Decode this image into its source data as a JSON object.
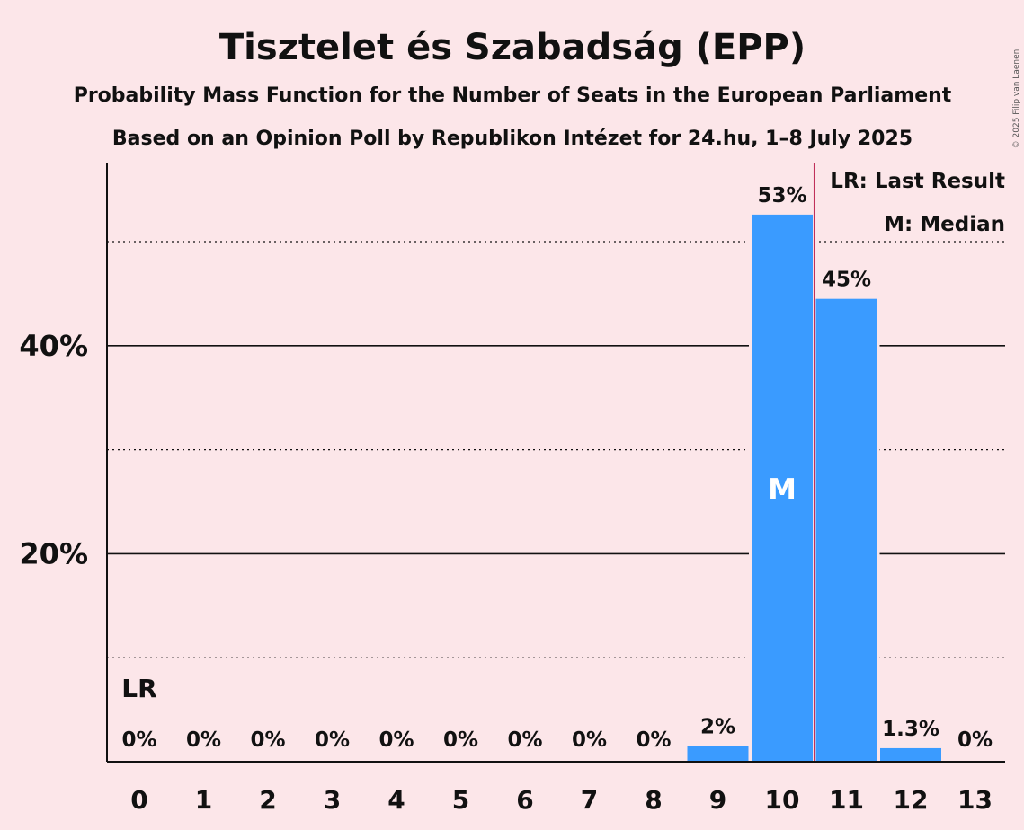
{
  "chart_data": {
    "type": "bar",
    "title": "Tisztelet és Szabadság (EPP)",
    "subtitle": "Probability Mass Function for the Number of Seats in the European Parliament",
    "subtitle2": "Based on an Opinion Poll by Republikon Intézet for 24.hu, 1–8 July 2025",
    "categories": [
      "0",
      "1",
      "2",
      "3",
      "4",
      "5",
      "6",
      "7",
      "8",
      "9",
      "10",
      "11",
      "12",
      "13"
    ],
    "values": [
      0,
      0,
      0,
      0,
      0,
      0,
      0,
      0,
      0,
      1.5,
      52.6,
      44.5,
      1.3,
      0
    ],
    "data_labels": [
      "0%",
      "0%",
      "0%",
      "0%",
      "0%",
      "0%",
      "0%",
      "0%",
      "0%",
      "2%",
      "53%",
      "45%",
      "1.3%",
      "0%"
    ],
    "ylim": [
      0,
      57.5
    ],
    "yticks": [
      20,
      40
    ],
    "ytick_labels": [
      "20%",
      "40%"
    ],
    "minor_gridlines": [
      10,
      30,
      50
    ],
    "last_result_seats": 0,
    "last_result_label": "LR",
    "median_seats": 10,
    "median_label": "M",
    "majority_line_after_seat": 10,
    "legend": [
      "LR: Last Result",
      "M: Median"
    ],
    "legend_position": "top-right",
    "bar_color": "#3a9bff",
    "line_color": "#c0305a",
    "copyright": "© 2025 Filip van Laenen"
  }
}
